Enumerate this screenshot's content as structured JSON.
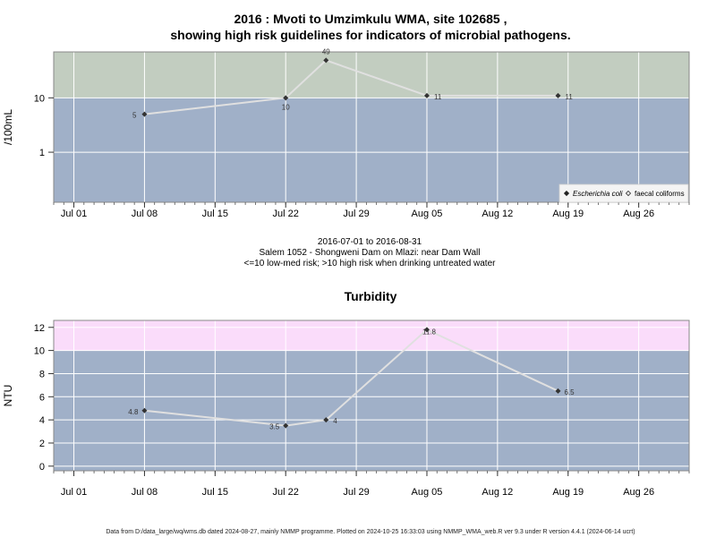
{
  "title_line1": "2016 : Mvoti to Umzimkulu WMA, site 102685 ,",
  "title_line2": "showing high risk guidelines for indicators of microbial pathogens.",
  "subtitle_lines": [
    "2016-07-01 to 2016-08-31",
    "Salem 1052 - Shongweni Dam on Mlazi: near Dam Wall",
    "<=10 low-med risk; >10 high risk when drinking untreated water"
  ],
  "footer": "Data from D:/data_large/wq/wms.db dated 2024-08-27, mainly NMMP programme. Plotted on 2024-10-25 16:33:03 using NMMP_WMA_web.R ver 9.3 under R version 4.4.1 (2024-06-14 ucrt)",
  "colors": {
    "low_band": "#a0b0c8",
    "high_band_microbial": "#c2cdc0",
    "high_band_turbidity": "#fadcfa",
    "line": "#e0e0e0",
    "grid": "#ffffff",
    "point": "#333333"
  },
  "chart_data": [
    {
      "type": "line",
      "title": "",
      "ylabel": "/100mL",
      "yscale": "log",
      "x_tick_labels": [
        "Jul 01",
        "Jul 08",
        "Jul 15",
        "Jul 22",
        "Jul 29",
        "Aug 05",
        "Aug 12",
        "Aug 19",
        "Aug 26"
      ],
      "x_tick_dates": [
        "2016-07-01",
        "2016-07-08",
        "2016-07-15",
        "2016-07-22",
        "2016-07-29",
        "2016-08-05",
        "2016-08-12",
        "2016-08-19",
        "2016-08-26"
      ],
      "xlim": [
        "2016-06-29",
        "2016-08-31"
      ],
      "y_tick_labels": [
        "1",
        "10"
      ],
      "y_ticks": [
        1,
        10
      ],
      "ylim": [
        0.12,
        70
      ],
      "threshold": 10,
      "grid": true,
      "legend_position": "bottom-right",
      "legend": [
        {
          "label": "Escherichia coli",
          "marker": "filled-diamond",
          "italic": true
        },
        {
          "label": "faecal coliforms",
          "marker": "open-diamond",
          "italic": false
        }
      ],
      "series": [
        {
          "name": "Escherichia coli",
          "x": [
            "2016-07-08",
            "2016-07-22",
            "2016-07-26",
            "2016-08-05",
            "2016-08-18"
          ],
          "y": [
            5,
            10,
            49,
            11,
            11
          ],
          "labels": [
            "5",
            "10",
            "49",
            "11",
            "11"
          ]
        }
      ]
    },
    {
      "type": "line",
      "title": "Turbidity",
      "ylabel": "NTU",
      "yscale": "linear",
      "x_tick_labels": [
        "Jul 01",
        "Jul 08",
        "Jul 15",
        "Jul 22",
        "Jul 29",
        "Aug 05",
        "Aug 12",
        "Aug 19",
        "Aug 26"
      ],
      "x_tick_dates": [
        "2016-07-01",
        "2016-07-08",
        "2016-07-15",
        "2016-07-22",
        "2016-07-29",
        "2016-08-05",
        "2016-08-12",
        "2016-08-19",
        "2016-08-26"
      ],
      "xlim": [
        "2016-06-29",
        "2016-08-31"
      ],
      "y_tick_labels": [
        "0",
        "2",
        "4",
        "6",
        "8",
        "10",
        "12"
      ],
      "y_ticks": [
        0,
        2,
        4,
        6,
        8,
        10,
        12
      ],
      "ylim": [
        -0.4,
        12.6
      ],
      "threshold": 10,
      "grid": true,
      "series": [
        {
          "name": "",
          "x": [
            "2016-07-08",
            "2016-07-22",
            "2016-07-26",
            "2016-08-05",
            "2016-08-18"
          ],
          "y": [
            4.8,
            3.5,
            4,
            11.8,
            6.5
          ],
          "labels": [
            "4.8",
            "3.5",
            "4",
            "11.8",
            "6.5"
          ]
        }
      ]
    }
  ]
}
